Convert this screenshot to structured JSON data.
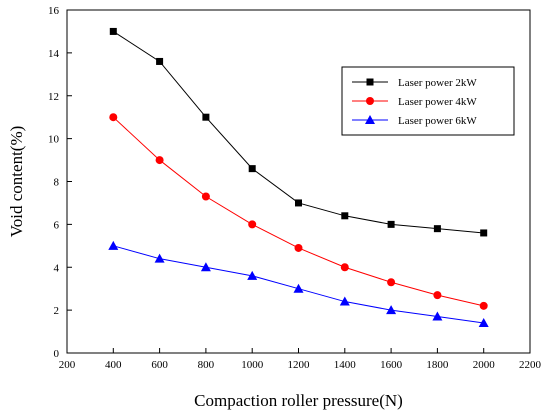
{
  "chart_data": {
    "type": "line",
    "xlabel": "Compaction roller pressure(N)",
    "ylabel": "Void content(%)",
    "xlim": [
      200,
      2200
    ],
    "ylim": [
      0,
      16
    ],
    "xticks": [
      200,
      400,
      600,
      800,
      1000,
      1200,
      1400,
      1600,
      1800,
      2000,
      2200
    ],
    "yticks": [
      0,
      2,
      4,
      6,
      8,
      10,
      12,
      14,
      16
    ],
    "grid": false,
    "legend_position": "top-right",
    "x": [
      400,
      600,
      800,
      1000,
      1200,
      1400,
      1600,
      1800,
      2000
    ],
    "series": [
      {
        "name": "Laser power 2kW",
        "color": "#000000",
        "marker": "square",
        "values": [
          15.0,
          13.6,
          11.0,
          8.6,
          7.0,
          6.4,
          6.0,
          5.8,
          5.6
        ]
      },
      {
        "name": "Laser power 4kW",
        "color": "#ff0000",
        "marker": "circle",
        "values": [
          11.0,
          9.0,
          7.3,
          6.0,
          4.9,
          4.0,
          3.3,
          2.7,
          2.2
        ]
      },
      {
        "name": "Laser power 6kW",
        "color": "#0000ff",
        "marker": "triangle",
        "values": [
          5.0,
          4.4,
          4.0,
          3.6,
          3.0,
          2.4,
          2.0,
          1.7,
          1.4
        ]
      }
    ]
  }
}
